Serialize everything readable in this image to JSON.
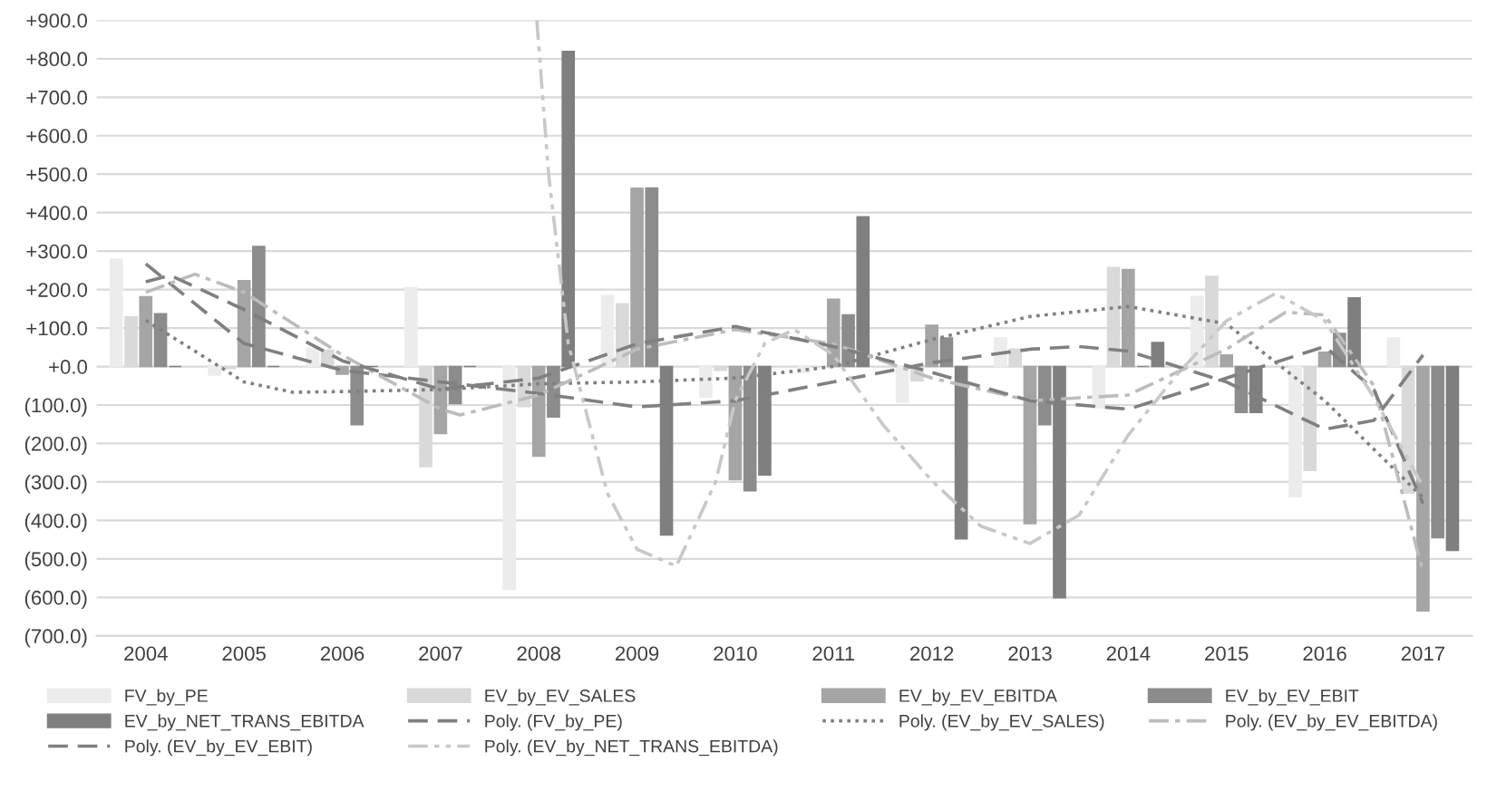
{
  "chart_data": {
    "type": "bar",
    "x": [
      2004,
      2005,
      2006,
      2007,
      2008,
      2009,
      2010,
      2011,
      2012,
      2013,
      2014,
      2015,
      2016,
      2017
    ],
    "xlim": [
      2003.5,
      2017.5
    ],
    "xticks": [
      2004,
      2005,
      2006,
      2007,
      2008,
      2009,
      2010,
      2011,
      2012,
      2013,
      2014,
      2015,
      2016,
      2017
    ],
    "ylim": [
      -700,
      900
    ],
    "yticks": [
      {
        "value": -700,
        "label": "(700.0)"
      },
      {
        "value": -600,
        "label": "(600.0)"
      },
      {
        "value": -500,
        "label": "(500.0)"
      },
      {
        "value": -400,
        "label": "(400.0)"
      },
      {
        "value": -300,
        "label": "(300.0)"
      },
      {
        "value": -200,
        "label": "(200.0)"
      },
      {
        "value": -100,
        "label": "(100.0)"
      },
      {
        "value": 0,
        "label": "+0.0"
      },
      {
        "value": 100,
        "label": "+100.0"
      },
      {
        "value": 200,
        "label": "+200.0"
      },
      {
        "value": 300,
        "label": "+300.0"
      },
      {
        "value": 400,
        "label": "+400.0"
      },
      {
        "value": 500,
        "label": "+500.0"
      },
      {
        "value": 600,
        "label": "+600.0"
      },
      {
        "value": 700,
        "label": "+700.0"
      },
      {
        "value": 800,
        "label": "+800.0"
      },
      {
        "value": 900,
        "label": "+900.0"
      }
    ],
    "grid": "y",
    "legend": "bottom",
    "series": [
      {
        "name": "FV_by_PE",
        "color": "#ececec",
        "values": [
          279,
          -22,
          47,
          205,
          -579,
          184,
          -79,
          -15,
          -93,
          74,
          -107,
          182,
          -338,
          74
        ]
      },
      {
        "name": "EV_by_EV_SALES",
        "color": "#d9d9d9",
        "values": [
          129,
          -5,
          42,
          -260,
          -104,
          163,
          -10,
          0,
          -37,
          45,
          257,
          234,
          -270,
          -329
        ]
      },
      {
        "name": "EV_by_EV_EBITDA",
        "color": "#a5a5a5",
        "values": [
          181,
          223,
          -20,
          -174,
          -233,
          463,
          -294,
          175,
          107,
          -408,
          252,
          30,
          37,
          -635
        ]
      },
      {
        "name": "EV_by_EV_EBIT",
        "color": "#8c8c8c",
        "values": [
          137,
          312,
          -151,
          -96,
          -131,
          464,
          -323,
          134,
          74,
          -151,
          0,
          -119,
          86,
          -445
        ]
      },
      {
        "name": "EV_by_NET_TRANS_EBITDA",
        "color": "#7f7f7f",
        "values": [
          0,
          0,
          0,
          0,
          819,
          -438,
          -282,
          389,
          -448,
          -601,
          62,
          -119,
          178,
          -478
        ]
      },
      {
        "name": "Poly. (FV_by_PE)",
        "type": "line",
        "line_style": "dashed",
        "color": "#808080",
        "x": [
          2004,
          2005,
          2006,
          2007,
          2008,
          2009,
          2010,
          2011,
          2012,
          2013,
          2013.5,
          2014,
          2015,
          2016,
          2016.5,
          2017
        ],
        "values": [
          267,
          60,
          -10,
          -40,
          -70,
          -105,
          -89,
          -40,
          10,
          45,
          52,
          40,
          -40,
          -163,
          -140,
          30
        ]
      },
      {
        "name": "Poly. (EV_by_EV_SALES)",
        "type": "line",
        "line_style": "dotted",
        "color": "#808080",
        "x": [
          2004,
          2005,
          2005.5,
          2006,
          2007,
          2008,
          2009,
          2010,
          2011,
          2012,
          2013,
          2014,
          2015,
          2016,
          2017
        ],
        "values": [
          120,
          -40,
          -67,
          -65,
          -60,
          -45,
          -40,
          -30,
          0,
          70,
          130,
          156,
          111,
          -89,
          -341
        ]
      },
      {
        "name": "Poly. (EV_by_EV_EBITDA)",
        "type": "line",
        "line_style": "dashdot",
        "color": "#bcbcbc",
        "x": [
          2004,
          2004.5,
          2005,
          2006,
          2007,
          2007.2,
          2008,
          2009,
          2010,
          2011,
          2012,
          2013,
          2014,
          2015,
          2015.6,
          2016,
          2016.5,
          2017
        ],
        "values": [
          193,
          240,
          193,
          30,
          -111,
          -126,
          -74,
          45,
          96,
          59,
          -30,
          -89,
          -74,
          45,
          141,
          134,
          -50,
          -534
        ]
      },
      {
        "name": "Poly. (EV_by_EV_EBIT)",
        "type": "line",
        "line_style": "dashed",
        "color": "#7f7f7f",
        "x": [
          2004,
          2004.25,
          2005,
          2006,
          2007,
          2008,
          2009,
          2010,
          2011,
          2012,
          2013,
          2014,
          2015,
          2016,
          2016.5,
          2017
        ],
        "values": [
          220,
          237,
          148,
          15,
          -59,
          -30,
          59,
          104,
          52,
          -15,
          -89,
          -111,
          -30,
          52,
          -60,
          -356
        ]
      },
      {
        "name": "Poly. (EV_by_NET_TRANS_EBITDA)",
        "type": "line",
        "line_style": "dashdotdot",
        "color": "#c8c8c8",
        "x": [
          2007.98,
          2008.1,
          2008.3,
          2008.7,
          2009,
          2009.4,
          2009.8,
          2010,
          2010.3,
          2010.6,
          2011,
          2011.5,
          2012,
          2012.5,
          2013,
          2013.5,
          2014,
          2014.5,
          2015,
          2015.5,
          2016,
          2016.5,
          2017
        ],
        "values": [
          900,
          500,
          59,
          -330,
          -475,
          -519,
          -300,
          -89,
          60,
          96,
          30,
          -150,
          -297,
          -415,
          -460,
          -386,
          -178,
          -20,
          119,
          190,
          119,
          -80,
          -312
        ]
      }
    ]
  }
}
